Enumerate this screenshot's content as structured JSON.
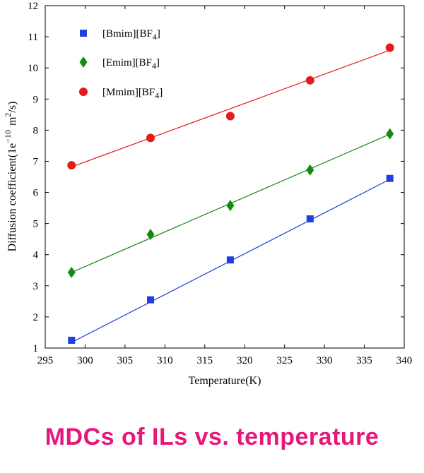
{
  "chart_data": {
    "type": "scatter",
    "xlabel": "Temperature(K)",
    "ylabel": "Diffusion coefficient(1e",
    "ylabel_exp": "−10",
    "ylabel_unit": "m",
    "ylabel_unit_exp": "2",
    "ylabel_tail": "/s)",
    "xlim": [
      295,
      340
    ],
    "ylim": [
      1,
      12
    ],
    "xticks": [
      295,
      300,
      305,
      310,
      315,
      320,
      325,
      330,
      335,
      340
    ],
    "yticks": [
      1,
      2,
      3,
      4,
      5,
      6,
      7,
      8,
      9,
      10,
      11,
      12
    ],
    "grid": false,
    "legend_position": "top-left",
    "series": [
      {
        "name": "[Bmim][BF",
        "name_sub": "4",
        "name_tail": "]",
        "marker": "square",
        "color": "#1f3fe0",
        "x": [
          298.3,
          308.2,
          318.2,
          328.2,
          338.2
        ],
        "y": [
          1.25,
          2.55,
          3.83,
          5.15,
          6.45
        ],
        "fit": [
          [
            298.3,
            1.18
          ],
          [
            338.2,
            6.42
          ]
        ]
      },
      {
        "name": "[Emim][BF",
        "name_sub": "4",
        "name_tail": "]",
        "marker": "diamond",
        "color": "#138a13",
        "x": [
          298.3,
          308.2,
          318.2,
          328.2,
          338.2
        ],
        "y": [
          3.43,
          4.65,
          5.58,
          6.72,
          7.88
        ],
        "fit": [
          [
            298.3,
            3.43
          ],
          [
            338.2,
            7.87
          ]
        ]
      },
      {
        "name": "[Mmim][BF",
        "name_sub": "4",
        "name_tail": "]",
        "marker": "circle",
        "color": "#e31b1b",
        "x": [
          298.3,
          308.2,
          318.2,
          328.2,
          338.2
        ],
        "y": [
          6.87,
          7.75,
          8.45,
          9.6,
          10.65
        ],
        "fit": [
          [
            298.3,
            6.82
          ],
          [
            338.2,
            10.57
          ]
        ]
      }
    ]
  },
  "caption": "MDCs of ILs vs. temperature"
}
